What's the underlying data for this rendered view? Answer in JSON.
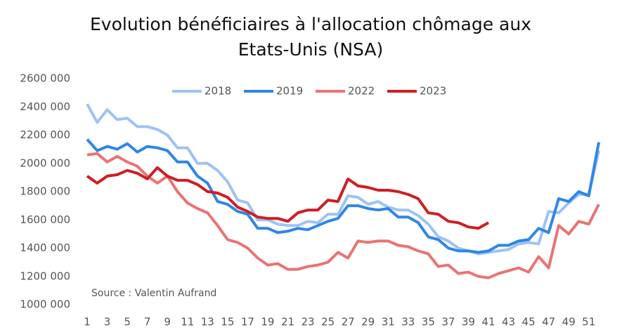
{
  "chart_data": {
    "type": "line",
    "title": [
      "Evolution bénéficiaires à l'allocation chômage aux",
      "Etats-Unis (NSA)"
    ],
    "annotation": "Source : Valentin Aufrand",
    "categories": [
      "1",
      null,
      "3",
      null,
      "5",
      null,
      "7",
      null,
      "9",
      null,
      "11",
      null,
      "13",
      null,
      "15",
      null,
      "17",
      null,
      "19",
      null,
      "21",
      null,
      "23",
      null,
      "25",
      null,
      "27",
      null,
      "29",
      null,
      "31",
      null,
      "33",
      null,
      "35",
      null,
      "37",
      null,
      "39",
      null,
      "41",
      null,
      "43",
      null,
      "45",
      null,
      "47",
      null,
      "49",
      null,
      "51",
      null
    ],
    "ylim": [
      1000000,
      2600000
    ],
    "yticks": [
      {
        "value": 1000000,
        "label": "1000 000"
      },
      {
        "value": 1200000,
        "label": "1200 000"
      },
      {
        "value": 1400000,
        "label": "1400 000"
      },
      {
        "value": 1600000,
        "label": "1600 000"
      },
      {
        "value": 1800000,
        "label": "1800 000"
      },
      {
        "value": 2000000,
        "label": "2000 000"
      },
      {
        "value": 2200000,
        "label": "2200 000"
      },
      {
        "value": 2400000,
        "label": "2400 000"
      },
      {
        "value": 2600000,
        "label": "2600 000"
      }
    ],
    "grid": false,
    "legend": "top",
    "series": [
      {
        "name": "2018",
        "color": "#9dc3f2",
        "values": [
          2420000,
          2290000,
          2380000,
          2310000,
          2320000,
          2260000,
          2260000,
          2240000,
          2200000,
          2110000,
          2110000,
          2000000,
          2000000,
          1950000,
          1870000,
          1740000,
          1720000,
          1600000,
          1600000,
          1570000,
          1560000,
          1560000,
          1590000,
          1580000,
          1640000,
          1640000,
          1770000,
          1760000,
          1710000,
          1730000,
          1690000,
          1670000,
          1670000,
          1630000,
          1570000,
          1480000,
          1450000,
          1400000,
          1380000,
          1360000,
          1370000,
          1380000,
          1390000,
          1430000,
          1440000,
          1430000,
          1660000,
          1650000,
          1720000,
          1780000,
          1780000,
          2090000
        ]
      },
      {
        "name": "2019",
        "color": "#2e86e8",
        "values": [
          2170000,
          2090000,
          2120000,
          2100000,
          2140000,
          2080000,
          2120000,
          2110000,
          2090000,
          2010000,
          2010000,
          1910000,
          1860000,
          1730000,
          1710000,
          1660000,
          1640000,
          1540000,
          1540000,
          1510000,
          1520000,
          1540000,
          1530000,
          1560000,
          1590000,
          1610000,
          1700000,
          1700000,
          1680000,
          1670000,
          1680000,
          1620000,
          1620000,
          1580000,
          1480000,
          1460000,
          1400000,
          1380000,
          1380000,
          1370000,
          1380000,
          1420000,
          1420000,
          1450000,
          1460000,
          1540000,
          1510000,
          1750000,
          1730000,
          1800000,
          1770000,
          2150000
        ]
      },
      {
        "name": "2022",
        "color": "#ea7373",
        "values": [
          2060000,
          2070000,
          2010000,
          2050000,
          2010000,
          1980000,
          1910000,
          1860000,
          1910000,
          1800000,
          1720000,
          1680000,
          1650000,
          1560000,
          1460000,
          1440000,
          1400000,
          1330000,
          1280000,
          1290000,
          1250000,
          1250000,
          1270000,
          1280000,
          1300000,
          1370000,
          1330000,
          1450000,
          1440000,
          1450000,
          1450000,
          1420000,
          1410000,
          1380000,
          1360000,
          1270000,
          1280000,
          1220000,
          1230000,
          1200000,
          1190000,
          1220000,
          1240000,
          1260000,
          1230000,
          1340000,
          1260000,
          1560000,
          1500000,
          1590000,
          1570000,
          1710000
        ]
      },
      {
        "name": "2023",
        "color": "#d01c24",
        "values": [
          1910000,
          1860000,
          1910000,
          1920000,
          1950000,
          1930000,
          1890000,
          1970000,
          1910000,
          1880000,
          1880000,
          1850000,
          1800000,
          1790000,
          1760000,
          1690000,
          1660000,
          1620000,
          1610000,
          1610000,
          1590000,
          1650000,
          1670000,
          1670000,
          1740000,
          1730000,
          1890000,
          1840000,
          1830000,
          1810000,
          1810000,
          1800000,
          1780000,
          1750000,
          1650000,
          1640000,
          1590000,
          1580000,
          1550000,
          1540000,
          1580000,
          null,
          null,
          null,
          null,
          null,
          null,
          null,
          null,
          null,
          null,
          null
        ]
      }
    ]
  }
}
